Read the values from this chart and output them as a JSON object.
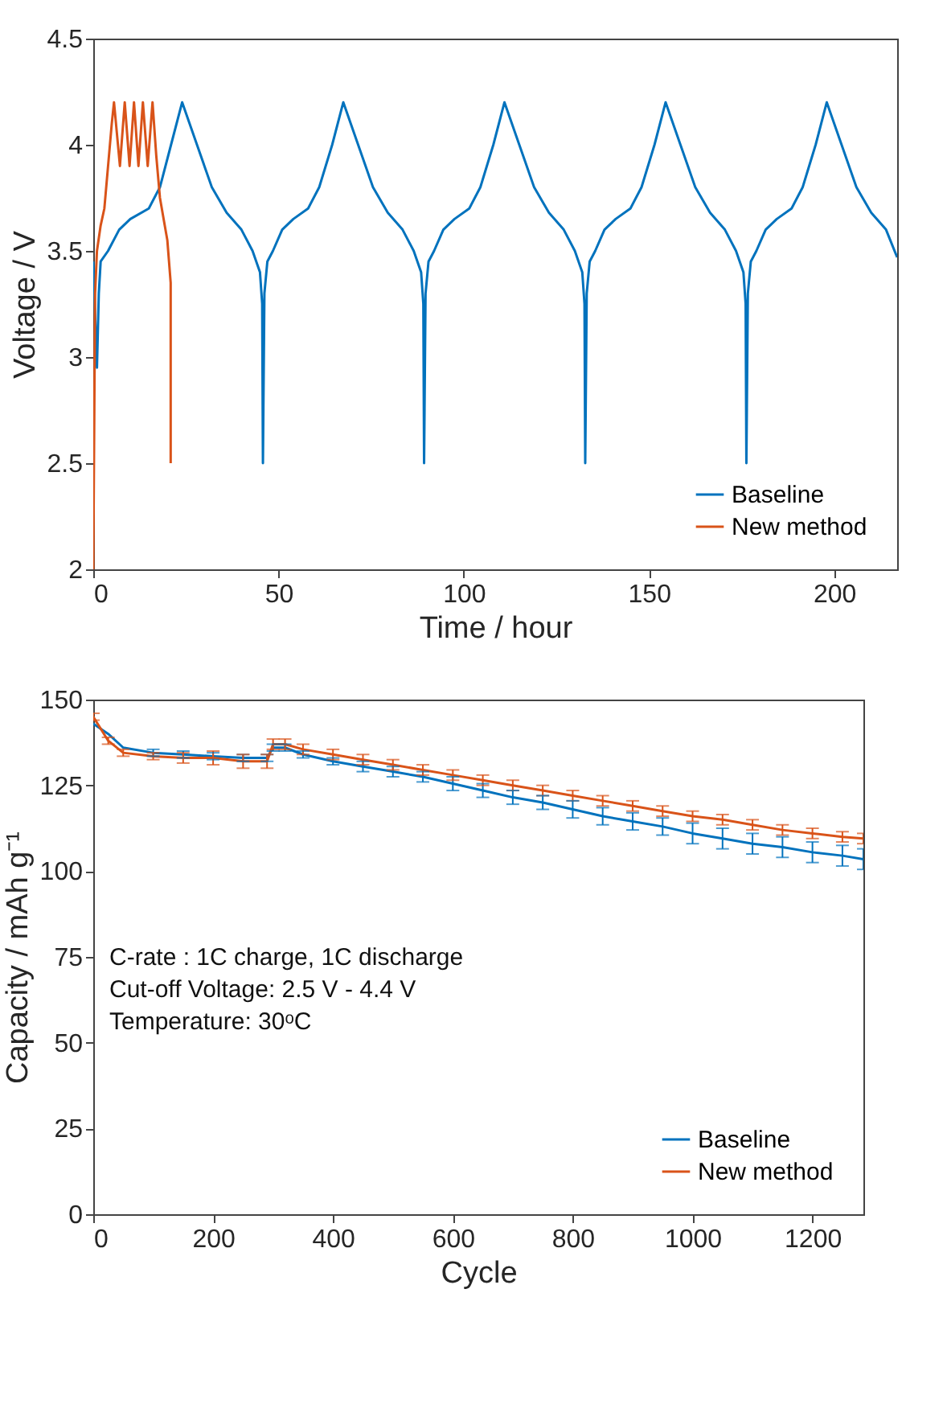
{
  "chart_data": [
    {
      "type": "line",
      "xlabel": "Time / hour",
      "ylabel": "Voltage / V",
      "xlim": [
        0,
        217
      ],
      "ylim": [
        2,
        4.5
      ],
      "xticks": [
        0,
        50,
        100,
        150,
        200
      ],
      "yticks": [
        2,
        2.5,
        3,
        3.5,
        4,
        4.5
      ],
      "grid": false,
      "legend": "bottom right",
      "series": [
        {
          "name": "Baseline",
          "color": "#0072bd",
          "x": [
            0,
            1,
            1.5,
            2,
            4,
            7,
            10,
            15,
            18,
            21,
            24,
            28,
            32,
            36,
            40,
            43,
            45,
            45.6,
            45.8,
            46.2,
            47,
            48.5,
            51,
            54,
            58,
            61,
            64.5,
            67.5,
            71.5,
            75.5,
            79.5,
            83.5,
            86.5,
            88.5,
            89.1,
            89.3,
            89.7,
            90.5,
            92,
            94.5,
            97.5,
            101.5,
            104.5,
            108,
            111,
            115,
            119,
            123,
            127,
            130,
            132,
            132.6,
            132.8,
            133.2,
            134,
            135.5,
            138,
            141,
            145,
            148,
            151.5,
            154.5,
            158.5,
            162.5,
            166.5,
            170.5,
            173.5,
            175.5,
            176.1,
            176.3,
            176.7,
            177.5,
            179,
            181.5,
            184.5,
            188.5,
            191.5,
            195,
            198,
            202,
            206,
            210,
            214,
            217
          ],
          "values": [
            3.45,
            2.95,
            3.3,
            3.45,
            3.5,
            3.6,
            3.65,
            3.7,
            3.8,
            4.0,
            4.2,
            4.0,
            3.8,
            3.68,
            3.6,
            3.5,
            3.4,
            3.25,
            2.5,
            3.3,
            3.45,
            3.5,
            3.6,
            3.65,
            3.7,
            3.8,
            4.0,
            4.2,
            4.0,
            3.8,
            3.68,
            3.6,
            3.5,
            3.4,
            3.25,
            2.5,
            3.3,
            3.45,
            3.5,
            3.6,
            3.65,
            3.7,
            3.8,
            4.0,
            4.2,
            4.0,
            3.8,
            3.68,
            3.6,
            3.5,
            3.4,
            3.25,
            2.5,
            3.3,
            3.45,
            3.5,
            3.6,
            3.65,
            3.7,
            3.8,
            4.0,
            4.2,
            4.0,
            3.8,
            3.68,
            3.6,
            3.5,
            3.4,
            3.25,
            2.5,
            3.3,
            3.45,
            3.5,
            3.6,
            3.65,
            3.7,
            3.8,
            4.0,
            4.2,
            4.0,
            3.8,
            3.68,
            3.6,
            3.47
          ]
        },
        {
          "name": "New method",
          "color": "#d95319",
          "x": [
            0,
            0.5,
            1,
            2,
            3,
            4,
            5,
            5.6,
            7.2,
            8.5,
            9.8,
            11,
            12.2,
            13.4,
            14.7,
            16,
            17,
            18,
            19,
            20,
            20.9,
            20.9
          ],
          "values": [
            2.0,
            3.3,
            3.5,
            3.62,
            3.7,
            3.9,
            4.1,
            4.2,
            3.9,
            4.2,
            3.9,
            4.2,
            3.9,
            4.2,
            3.9,
            4.2,
            3.95,
            3.75,
            3.65,
            3.55,
            3.35,
            2.5
          ]
        }
      ]
    },
    {
      "type": "line",
      "xlabel": "Cycle",
      "ylabel": "Capacity / mAh g⁻¹",
      "xlim": [
        0,
        1285
      ],
      "ylim": [
        0,
        150
      ],
      "xticks": [
        0,
        200,
        400,
        600,
        800,
        1000,
        1200
      ],
      "yticks": [
        0,
        25,
        50,
        75,
        100,
        125,
        150
      ],
      "grid": false,
      "legend": "bottom right",
      "annotations": [
        "C-rate : 1C charge, 1C discharge",
        "Cut-off Voltage: 2.5 V - 4.4 V",
        "Temperature: 30ᵒC"
      ],
      "x": [
        0,
        25,
        50,
        100,
        150,
        200,
        250,
        290,
        300,
        320,
        350,
        400,
        450,
        500,
        550,
        600,
        650,
        700,
        750,
        800,
        850,
        900,
        950,
        1000,
        1050,
        1100,
        1150,
        1200,
        1250,
        1285
      ],
      "series": [
        {
          "name": "Baseline",
          "color": "#0072bd",
          "values": [
            143,
            140,
            136,
            134.5,
            134,
            133.5,
            133,
            133,
            136,
            136,
            134,
            132,
            130.5,
            129,
            127.5,
            125.5,
            123.5,
            121.5,
            120,
            118,
            116,
            114.5,
            113,
            111,
            109.5,
            108,
            107,
            105.5,
            104.5,
            103.5
          ],
          "errors": [
            null,
            null,
            null,
            1,
            1,
            1,
            1,
            1,
            1,
            1,
            1,
            1,
            1.5,
            1.5,
            1.5,
            2,
            2,
            2,
            2,
            2.5,
            2.5,
            2.5,
            2.5,
            3,
            3,
            3,
            3,
            3,
            3,
            3
          ]
        },
        {
          "name": "New method",
          "color": "#d95319",
          "values": [
            145,
            138,
            134.5,
            133.5,
            133,
            133,
            132,
            132,
            137,
            137,
            135.5,
            134,
            132.5,
            131,
            129.5,
            128,
            126.5,
            125,
            123.5,
            122,
            120.5,
            119,
            117.5,
            116,
            115,
            113.5,
            112,
            111,
            110,
            109.5
          ],
          "errors": [
            1,
            1,
            1,
            1,
            1.5,
            2,
            2,
            2,
            1.5,
            1.5,
            1.5,
            1.5,
            1.5,
            1.5,
            1.5,
            1.5,
            1.5,
            1.5,
            1.5,
            1.5,
            1.5,
            1.5,
            1.5,
            1.5,
            1.5,
            1.5,
            1.5,
            1.5,
            1.5,
            1.5
          ]
        }
      ]
    }
  ]
}
